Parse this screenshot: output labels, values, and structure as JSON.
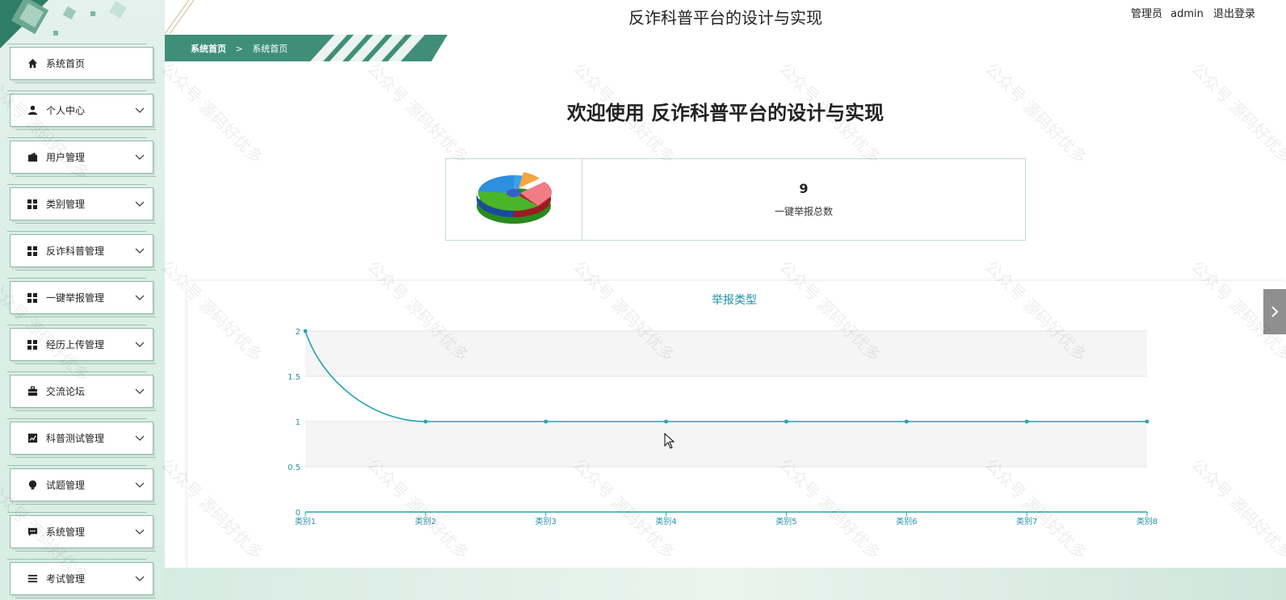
{
  "header": {
    "app_title": "反诈科普平台的设计与实现",
    "role_label": "管理员",
    "username": "admin",
    "logout_label": "退出登录"
  },
  "breadcrumb": {
    "items": [
      "系统首页",
      "系统首页"
    ],
    "separator": ">"
  },
  "sidebar": {
    "items": [
      {
        "label": "系统首页",
        "icon": "home-icon",
        "expandable": false
      },
      {
        "label": "个人中心",
        "icon": "person-icon",
        "expandable": true
      },
      {
        "label": "用户管理",
        "icon": "wallet-icon",
        "expandable": true
      },
      {
        "label": "类别管理",
        "icon": "grid-icon",
        "expandable": true
      },
      {
        "label": "反诈科普管理",
        "icon": "grid-icon",
        "expandable": true
      },
      {
        "label": "一键举报管理",
        "icon": "grid-icon",
        "expandable": true
      },
      {
        "label": "经历上传管理",
        "icon": "grid-icon",
        "expandable": true
      },
      {
        "label": "交流论坛",
        "icon": "briefcase-icon",
        "expandable": true
      },
      {
        "label": "科普测试管理",
        "icon": "chart-icon",
        "expandable": true
      },
      {
        "label": "试题管理",
        "icon": "bulb-icon",
        "expandable": true
      },
      {
        "label": "系统管理",
        "icon": "message-icon",
        "expandable": true
      },
      {
        "label": "考试管理",
        "icon": "list-icon",
        "expandable": true
      }
    ]
  },
  "main": {
    "welcome_text": "欢迎使用 反诈科普平台的设计与实现",
    "stat": {
      "value": "9",
      "label": "一键举报总数",
      "icon": "pie-chart-icon"
    }
  },
  "watermark_text": "公众号 源码好优多",
  "colors": {
    "brand": "#3f8f78",
    "line": "#26a3b0",
    "title": "#1f8fa8"
  },
  "chart_data": {
    "type": "line",
    "title": "举报类型",
    "categories": [
      "类别1",
      "类别2",
      "类别3",
      "类别4",
      "类别5",
      "类别6",
      "类别7",
      "类别8"
    ],
    "series": [
      {
        "values": [
          2,
          1,
          1,
          1,
          1,
          1,
          1,
          1
        ]
      }
    ],
    "ylim": [
      0,
      2
    ],
    "yticks": [
      "0",
      "0.5",
      "1",
      "1.5",
      "2"
    ],
    "grid": true,
    "smooth": true
  }
}
